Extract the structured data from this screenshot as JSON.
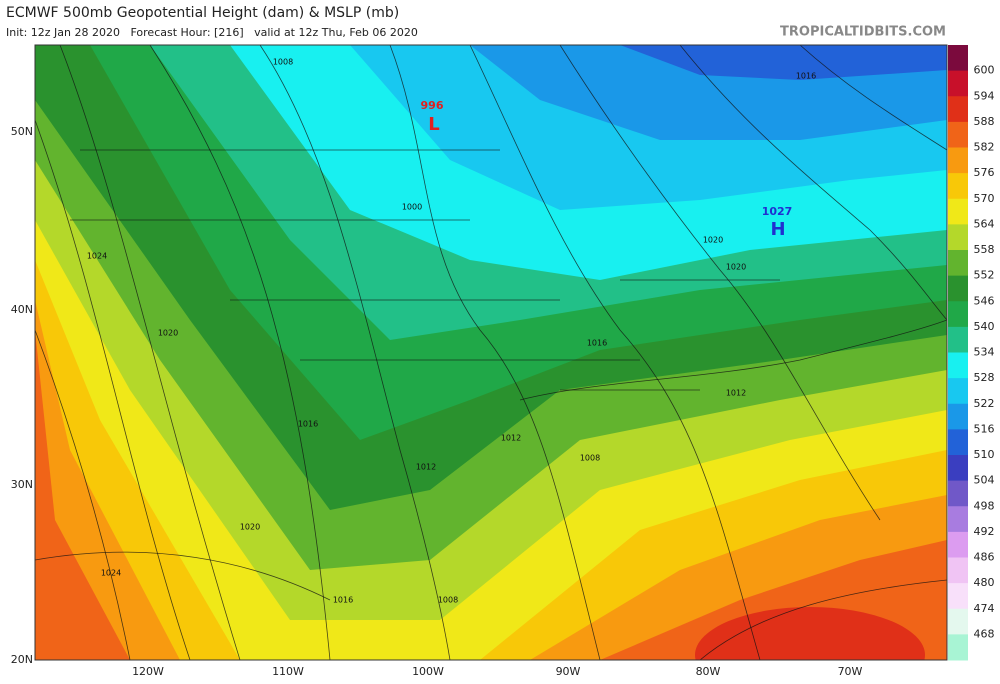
{
  "header": {
    "title": "ECMWF 500mb Geopotential Height (dam) & MSLP (mb)",
    "subtitle": "Init: 12z Jan 28 2020   Forecast Hour: [216]   valid at 12z Thu, Feb 06 2020",
    "site": "TROPICALTIDBITS.COM"
  },
  "map": {
    "latitude_labels": [
      "50N",
      "40N",
      "30N",
      "20N"
    ],
    "longitude_labels": [
      "120W",
      "110W",
      "100W",
      "90W",
      "80W",
      "70W"
    ],
    "low": {
      "letter": "L",
      "pressure": "996"
    },
    "high": {
      "letter": "H",
      "pressure": "1027"
    },
    "isobar_labels": [
      "1008",
      "1000",
      "1024",
      "1020",
      "1016",
      "1012",
      "1008",
      "1016",
      "1012",
      "1012",
      "1020",
      "1020",
      "1016",
      "1020",
      "1024",
      "1016",
      "1008"
    ]
  },
  "colorbar": {
    "levels": [
      600,
      594,
      588,
      582,
      576,
      570,
      564,
      558,
      552,
      546,
      540,
      534,
      528,
      522,
      516,
      510,
      504,
      498,
      492,
      486,
      480,
      474,
      468
    ],
    "colors": [
      "#7b0a3d",
      "#c8102a",
      "#e03018",
      "#f06418",
      "#f89a10",
      "#f8c808",
      "#f0e818",
      "#b4d82a",
      "#62b42e",
      "#2a922e",
      "#20a848",
      "#22c088",
      "#18f0f0",
      "#18c8f0",
      "#1a98e8",
      "#2262d8",
      "#3a3ec0",
      "#7058c8",
      "#a87ce0",
      "#dc9cf0",
      "#f0c4f4",
      "#f8e0fa",
      "#e4f8ee",
      "#a8f4d4"
    ]
  }
}
